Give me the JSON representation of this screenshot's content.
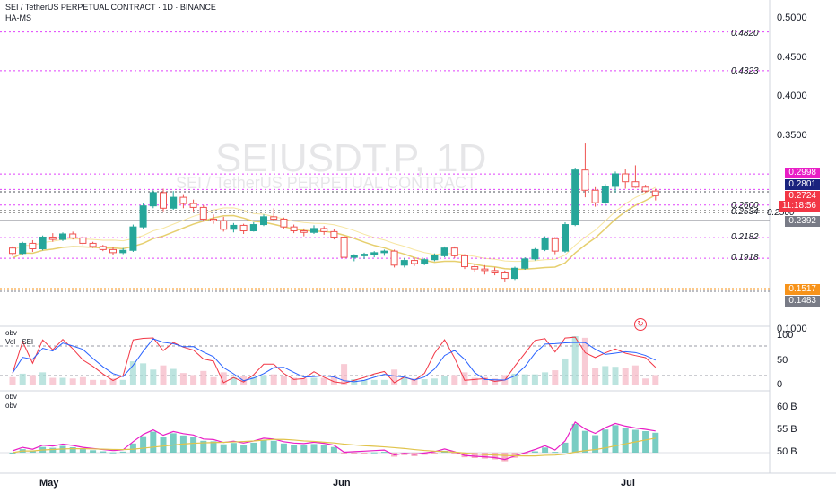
{
  "header": {
    "title": "SEI / TetherUS PERPETUAL CONTRACT · 1D · BINANCE",
    "indicator": "HA-MS"
  },
  "watermark": {
    "symbol": "SEIUSDT.P, 1D",
    "description": "SEI / TetherUS PERPETUAL CONTRACT"
  },
  "price_axis": {
    "ticks": [
      "0.5000",
      "0.4500",
      "0.4000",
      "0.3500",
      "0.1000"
    ]
  },
  "levels": [
    {
      "label": "0.4820",
      "value": 0.482,
      "color": "#e040fb"
    },
    {
      "label": "0.4323",
      "value": 0.4323,
      "color": "#e040fb"
    },
    {
      "label": "0.2600",
      "value": 0.26,
      "color": "#e040fb"
    },
    {
      "label": "0.2534",
      "value": 0.2534,
      "color": "#9e9e9e"
    },
    {
      "label": "0.2500",
      "value": 0.25,
      "color": "#9e9e9e"
    },
    {
      "label": "0.2182",
      "value": 0.2182,
      "color": "#e040fb"
    },
    {
      "label": "0.1918",
      "value": 0.1918,
      "color": "#e040fb"
    }
  ],
  "price_tags": [
    {
      "label": "0.2998",
      "value": 0.2998,
      "color": "#e91ec6"
    },
    {
      "label": "0.2801",
      "value": 0.2801,
      "color": "#1a237e"
    },
    {
      "label": "0.2724",
      "value": 0.2724,
      "color": "#f23645"
    },
    {
      "label": "11:18:56",
      "value": 0.2655,
      "color": "#f23645"
    },
    {
      "label": "0.2392",
      "value": 0.2392,
      "color": "#787b86"
    },
    {
      "label": "0.1517",
      "value": 0.1517,
      "color": "#f7931a"
    },
    {
      "label": "0.1483",
      "value": 0.1483,
      "color": "#787b86"
    }
  ],
  "pane2": {
    "labels": [
      "obv",
      "Vol · SEI"
    ],
    "ticks": [
      "100",
      "50",
      "0"
    ]
  },
  "pane3": {
    "labels": [
      "obv",
      "obv"
    ],
    "ticks": [
      "60 B",
      "55 B",
      "50 B"
    ]
  },
  "time_axis": {
    "labels": [
      "May",
      "Jun",
      "Jul"
    ]
  },
  "colors": {
    "up": "#26a69a",
    "down": "#ef5350",
    "level": "#e040fb",
    "band": "#e0c34a"
  },
  "chart_data": {
    "type": "candlestick",
    "title": "SEI / TetherUS PERPETUAL CONTRACT · 1D · BINANCE",
    "ohlc": [
      [
        0.205,
        0.207,
        0.195,
        0.198
      ],
      [
        0.198,
        0.213,
        0.196,
        0.211
      ],
      [
        0.211,
        0.215,
        0.2,
        0.204
      ],
      [
        0.204,
        0.221,
        0.202,
        0.219
      ],
      [
        0.219,
        0.224,
        0.213,
        0.216
      ],
      [
        0.216,
        0.225,
        0.214,
        0.223
      ],
      [
        0.223,
        0.226,
        0.216,
        0.218
      ],
      [
        0.218,
        0.22,
        0.208,
        0.211
      ],
      [
        0.211,
        0.213,
        0.205,
        0.207
      ],
      [
        0.207,
        0.209,
        0.201,
        0.203
      ],
      [
        0.203,
        0.206,
        0.196,
        0.199
      ],
      [
        0.199,
        0.205,
        0.197,
        0.202
      ],
      [
        0.202,
        0.235,
        0.2,
        0.232
      ],
      [
        0.232,
        0.262,
        0.23,
        0.259
      ],
      [
        0.259,
        0.279,
        0.256,
        0.276
      ],
      [
        0.276,
        0.281,
        0.252,
        0.256
      ],
      [
        0.256,
        0.278,
        0.254,
        0.27
      ],
      [
        0.27,
        0.274,
        0.256,
        0.262
      ],
      [
        0.262,
        0.267,
        0.252,
        0.257
      ],
      [
        0.257,
        0.26,
        0.239,
        0.242
      ],
      [
        0.242,
        0.248,
        0.236,
        0.24
      ],
      [
        0.24,
        0.245,
        0.226,
        0.229
      ],
      [
        0.229,
        0.237,
        0.225,
        0.234
      ],
      [
        0.234,
        0.236,
        0.223,
        0.227
      ],
      [
        0.227,
        0.238,
        0.226,
        0.235
      ],
      [
        0.235,
        0.248,
        0.233,
        0.245
      ],
      [
        0.245,
        0.256,
        0.24,
        0.242
      ],
      [
        0.242,
        0.244,
        0.23,
        0.232
      ],
      [
        0.232,
        0.235,
        0.224,
        0.227
      ],
      [
        0.227,
        0.23,
        0.22,
        0.225
      ],
      [
        0.225,
        0.234,
        0.223,
        0.23
      ],
      [
        0.23,
        0.233,
        0.222,
        0.226
      ],
      [
        0.226,
        0.229,
        0.216,
        0.219
      ],
      [
        0.219,
        0.221,
        0.19,
        0.193
      ],
      [
        0.193,
        0.197,
        0.188,
        0.195
      ],
      [
        0.195,
        0.199,
        0.191,
        0.197
      ],
      [
        0.197,
        0.201,
        0.193,
        0.199
      ],
      [
        0.199,
        0.203,
        0.195,
        0.201
      ],
      [
        0.201,
        0.203,
        0.18,
        0.183
      ],
      [
        0.183,
        0.192,
        0.18,
        0.189
      ],
      [
        0.189,
        0.192,
        0.182,
        0.185
      ],
      [
        0.185,
        0.192,
        0.183,
        0.19
      ],
      [
        0.19,
        0.198,
        0.188,
        0.195
      ],
      [
        0.195,
        0.207,
        0.193,
        0.205
      ],
      [
        0.205,
        0.207,
        0.192,
        0.195
      ],
      [
        0.195,
        0.197,
        0.178,
        0.181
      ],
      [
        0.181,
        0.185,
        0.174,
        0.178
      ],
      [
        0.178,
        0.183,
        0.171,
        0.176
      ],
      [
        0.176,
        0.18,
        0.17,
        0.173
      ],
      [
        0.173,
        0.176,
        0.161,
        0.166
      ],
      [
        0.166,
        0.181,
        0.164,
        0.179
      ],
      [
        0.179,
        0.193,
        0.177,
        0.191
      ],
      [
        0.191,
        0.205,
        0.189,
        0.203
      ],
      [
        0.203,
        0.22,
        0.201,
        0.217
      ],
      [
        0.217,
        0.219,
        0.197,
        0.201
      ],
      [
        0.201,
        0.238,
        0.199,
        0.235
      ],
      [
        0.235,
        0.308,
        0.233,
        0.305
      ],
      [
        0.305,
        0.339,
        0.27,
        0.279
      ],
      [
        0.279,
        0.283,
        0.258,
        0.263
      ],
      [
        0.263,
        0.287,
        0.259,
        0.284
      ],
      [
        0.284,
        0.303,
        0.276,
        0.3
      ],
      [
        0.3,
        0.306,
        0.281,
        0.29
      ],
      [
        0.29,
        0.311,
        0.282,
        0.283
      ],
      [
        0.283,
        0.286,
        0.276,
        0.278
      ],
      [
        0.278,
        0.281,
        0.266,
        0.272
      ]
    ]
  }
}
